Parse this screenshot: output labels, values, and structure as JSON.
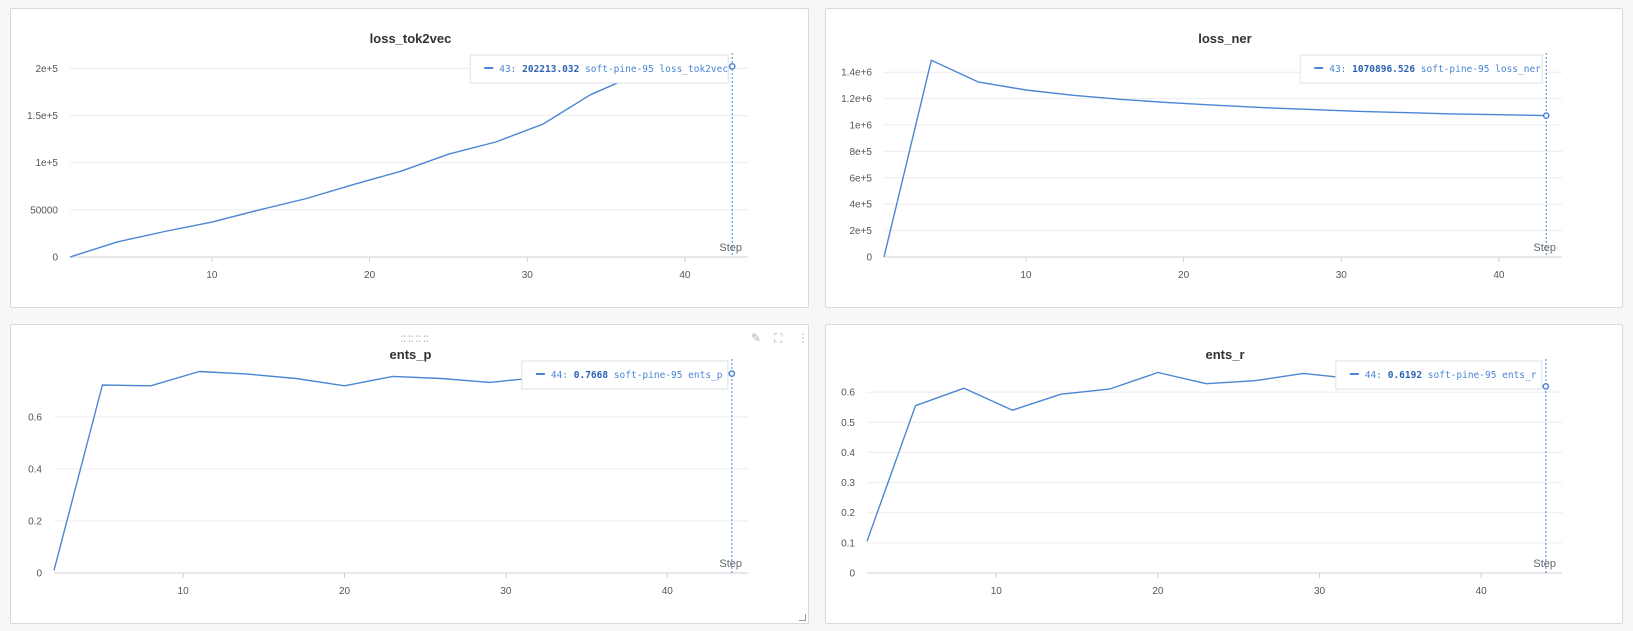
{
  "chart_data": [
    {
      "type": "line",
      "title": "loss_tok2vec",
      "xlabel": "Step",
      "xlim": [
        1,
        44
      ],
      "ylim": [
        0,
        210000
      ],
      "xticks": [
        10,
        20,
        30,
        40
      ],
      "yticks": [
        0,
        50000,
        100000,
        150000,
        200000
      ],
      "ytick_labels": [
        "0",
        "50000",
        "1e+5",
        "1.5e+5",
        "2e+5"
      ],
      "color": "#4a86d4",
      "series": [
        {
          "name": "soft-pine-95 loss_tok2vec",
          "x": [
            1,
            4,
            7,
            10,
            13,
            16,
            19,
            22,
            25,
            28,
            31,
            34,
            37,
            40,
            43
          ],
          "y": [
            0,
            16000,
            27000,
            37000,
            50000,
            62000,
            77000,
            91000,
            109000,
            122000,
            141000,
            172000,
            194000,
            200000,
            202213
          ]
        }
      ],
      "legend": {
        "step": "43:",
        "value": "202213.032",
        "label": "soft-pine-95 loss_tok2vec"
      }
    },
    {
      "type": "line",
      "title": "loss_ner",
      "xlabel": "Step",
      "xlim": [
        1,
        44
      ],
      "ylim": [
        0,
        1500000
      ],
      "xticks": [
        10,
        20,
        30,
        40
      ],
      "yticks": [
        0,
        200000,
        400000,
        600000,
        800000,
        1000000,
        1200000,
        1400000
      ],
      "ytick_labels": [
        "0",
        "2e+5",
        "4e+5",
        "6e+5",
        "8e+5",
        "1e+6",
        "1.2e+6",
        "1.4e+6"
      ],
      "color": "#4a86d4",
      "series": [
        {
          "name": "soft-pine-95 loss_ner",
          "x": [
            1,
            4,
            7,
            10,
            13,
            16,
            19,
            22,
            25,
            28,
            31,
            34,
            37,
            40,
            43
          ],
          "y": [
            0,
            1490000,
            1325000,
            1265000,
            1225000,
            1195000,
            1170000,
            1150000,
            1132000,
            1118000,
            1104000,
            1094000,
            1084000,
            1078000,
            1070896
          ]
        }
      ],
      "legend": {
        "step": "43:",
        "value": "1070896.526",
        "label": "soft-pine-95 loss_ner"
      }
    },
    {
      "type": "line",
      "title": "ents_p",
      "xlabel": "Step",
      "xlim": [
        2,
        45
      ],
      "ylim": [
        0,
        0.8
      ],
      "xticks": [
        10,
        20,
        30,
        40
      ],
      "yticks": [
        0,
        0.2,
        0.4,
        0.6
      ],
      "ytick_labels": [
        "0",
        "0.2",
        "0.4",
        "0.6"
      ],
      "color": "#4a86d4",
      "series": [
        {
          "name": "soft-pine-95 ents_p",
          "x": [
            2,
            5,
            8,
            11,
            14,
            17,
            20,
            23,
            26,
            29,
            32,
            35,
            38,
            41,
            44
          ],
          "y": [
            0.01,
            0.723,
            0.72,
            0.775,
            0.765,
            0.748,
            0.72,
            0.756,
            0.748,
            0.733,
            0.752,
            0.758,
            0.762,
            0.765,
            0.7668
          ]
        }
      ],
      "legend": {
        "step": "44:",
        "value": "0.7668",
        "label": "soft-pine-95 ents_p"
      }
    },
    {
      "type": "line",
      "title": "ents_r",
      "xlabel": "Step",
      "xlim": [
        2,
        45
      ],
      "ylim": [
        0,
        0.69
      ],
      "xticks": [
        10,
        20,
        30,
        40
      ],
      "yticks": [
        0,
        0.1,
        0.2,
        0.3,
        0.4,
        0.5,
        0.6
      ],
      "ytick_labels": [
        "0",
        "0.1",
        "0.2",
        "0.3",
        "0.4",
        "0.5",
        "0.6"
      ],
      "color": "#4a86d4",
      "series": [
        {
          "name": "soft-pine-95 ents_r",
          "x": [
            2,
            5,
            8,
            11,
            14,
            17,
            20,
            23,
            26,
            29,
            32,
            35,
            38,
            41,
            44
          ],
          "y": [
            0.105,
            0.555,
            0.613,
            0.54,
            0.593,
            0.61,
            0.665,
            0.628,
            0.638,
            0.662,
            0.645,
            0.632,
            0.628,
            0.625,
            0.6192
          ]
        }
      ],
      "legend": {
        "step": "44:",
        "value": "0.6192",
        "label": "soft-pine-95 ents_r"
      }
    }
  ]
}
